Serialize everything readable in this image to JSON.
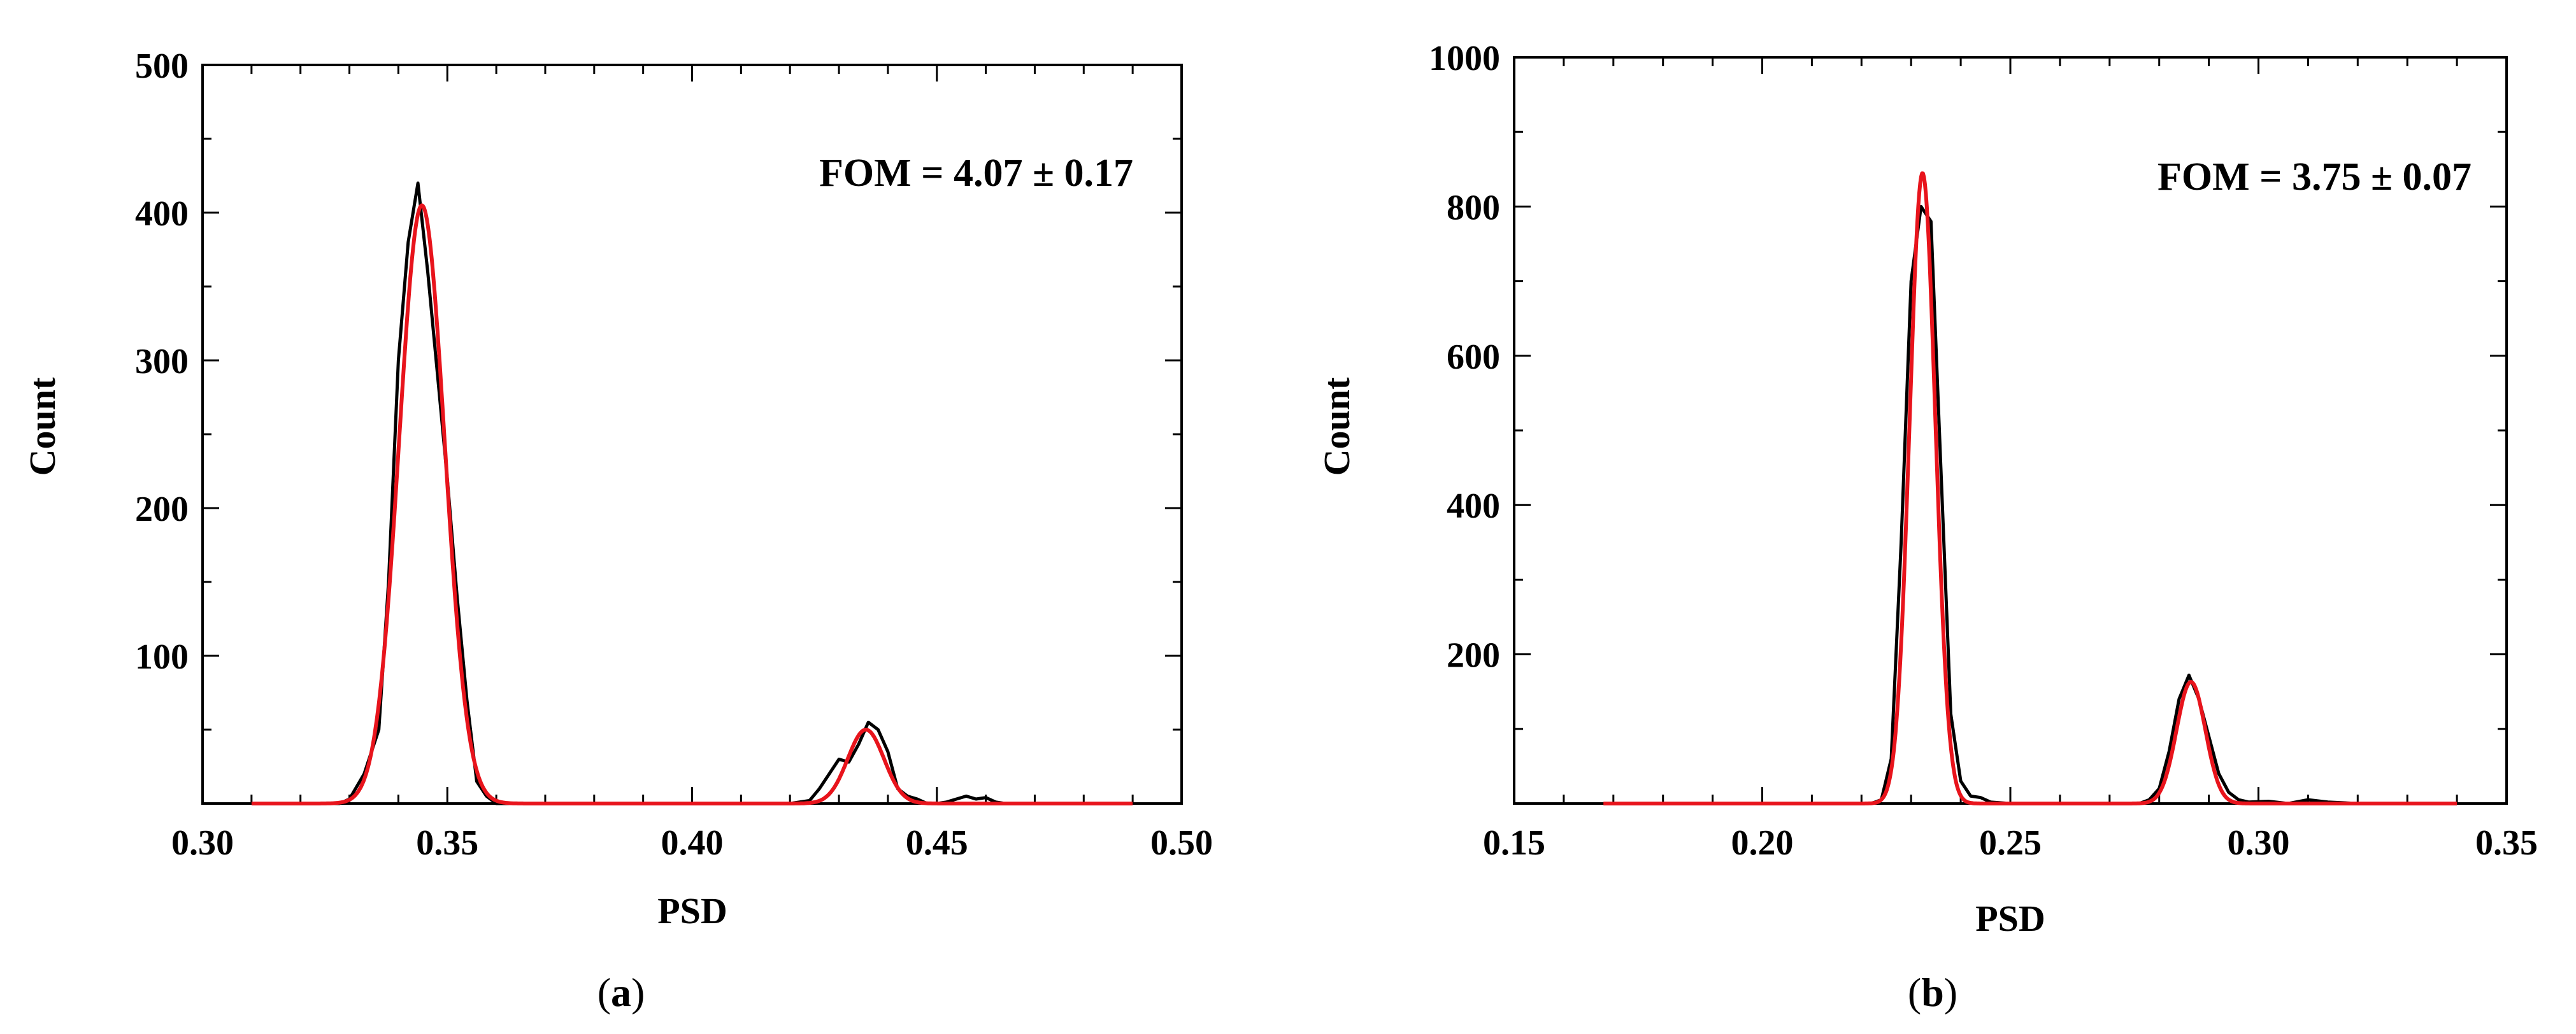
{
  "chart_data": [
    {
      "panel": "a",
      "caption": {
        "open": "(",
        "letter": "a",
        "close": ")"
      },
      "type": "line",
      "xlabel": "PSD",
      "ylabel": "Count",
      "xlim": [
        0.3,
        0.5
      ],
      "ylim": [
        0,
        500
      ],
      "xticks": [
        0.3,
        0.35,
        0.4,
        0.45,
        0.5
      ],
      "xtick_labels": [
        "0.30",
        "0.35",
        "0.40",
        "0.45",
        "0.50"
      ],
      "yticks": [
        100,
        200,
        300,
        400,
        500
      ],
      "ytick_labels": [
        "100",
        "200",
        "300",
        "400",
        "500"
      ],
      "x_minor_step": 0.01,
      "y_minor_step": 50,
      "annotation": "FOM = 4.07 ± 0.17",
      "grid": false,
      "colors": {
        "data": "#000000",
        "fit": "#e8141c"
      },
      "series": [
        {
          "role": "data",
          "x": [
            0.31,
            0.328,
            0.33,
            0.333,
            0.336,
            0.338,
            0.34,
            0.342,
            0.344,
            0.346,
            0.348,
            0.35,
            0.352,
            0.354,
            0.356,
            0.358,
            0.36,
            0.362,
            0.38,
            0.4,
            0.42,
            0.424,
            0.426,
            0.428,
            0.43,
            0.432,
            0.434,
            0.436,
            0.438,
            0.44,
            0.442,
            0.444,
            0.446,
            0.448,
            0.45,
            0.452,
            0.454,
            0.456,
            0.458,
            0.46,
            0.462,
            0.464,
            0.466,
            0.47,
            0.49
          ],
          "y": [
            0,
            0,
            3,
            20,
            50,
            150,
            300,
            380,
            420,
            360,
            290,
            220,
            140,
            70,
            15,
            5,
            0,
            0,
            0,
            0,
            0,
            2,
            10,
            20,
            30,
            28,
            40,
            55,
            50,
            35,
            10,
            5,
            3,
            0,
            0,
            1,
            3,
            5,
            3,
            4,
            1,
            0,
            0,
            0,
            0
          ]
        },
        {
          "role": "fit",
          "peaks": [
            {
              "amplitude": 405,
              "center": 0.3448,
              "sigma": 0.00465
            },
            {
              "amplitude": 50,
              "center": 0.4355,
              "sigma": 0.0037
            }
          ],
          "range": [
            0.31,
            0.49
          ]
        }
      ]
    },
    {
      "panel": "b",
      "caption": {
        "open": "(",
        "letter": "b",
        "close": ")"
      },
      "type": "line",
      "xlabel": "PSD",
      "ylabel": "Count",
      "xlim": [
        0.15,
        0.35
      ],
      "ylim": [
        0,
        1000
      ],
      "xticks": [
        0.15,
        0.2,
        0.25,
        0.3,
        0.35
      ],
      "xtick_labels": [
        "0.15",
        "0.20",
        "0.25",
        "0.30",
        "0.35"
      ],
      "yticks": [
        200,
        400,
        600,
        800,
        1000
      ],
      "ytick_labels": [
        "200",
        "400",
        "600",
        "800",
        "1000"
      ],
      "x_minor_step": 0.01,
      "y_minor_step": 100,
      "annotation": "FOM = 3.75 ± 0.07",
      "grid": false,
      "colors": {
        "data": "#000000",
        "fit": "#e8141c"
      },
      "series": [
        {
          "role": "data",
          "x": [
            0.17,
            0.222,
            0.224,
            0.226,
            0.228,
            0.23,
            0.232,
            0.234,
            0.236,
            0.238,
            0.24,
            0.242,
            0.244,
            0.246,
            0.25,
            0.26,
            0.276,
            0.278,
            0.28,
            0.282,
            0.284,
            0.286,
            0.288,
            0.29,
            0.292,
            0.294,
            0.296,
            0.298,
            0.302,
            0.306,
            0.31,
            0.314,
            0.32,
            0.34
          ],
          "y": [
            0,
            0,
            5,
            60,
            350,
            700,
            800,
            780,
            450,
            120,
            30,
            10,
            8,
            2,
            0,
            0,
            0,
            5,
            20,
            70,
            140,
            172,
            140,
            90,
            40,
            15,
            5,
            2,
            3,
            0,
            5,
            2,
            0,
            0
          ]
        },
        {
          "role": "fit",
          "peaks": [
            {
              "amplitude": 845,
              "center": 0.2323,
              "sigma": 0.0026
            },
            {
              "amplitude": 163,
              "center": 0.2864,
              "sigma": 0.0029
            }
          ],
          "range": [
            0.168,
            0.34
          ]
        }
      ]
    }
  ]
}
